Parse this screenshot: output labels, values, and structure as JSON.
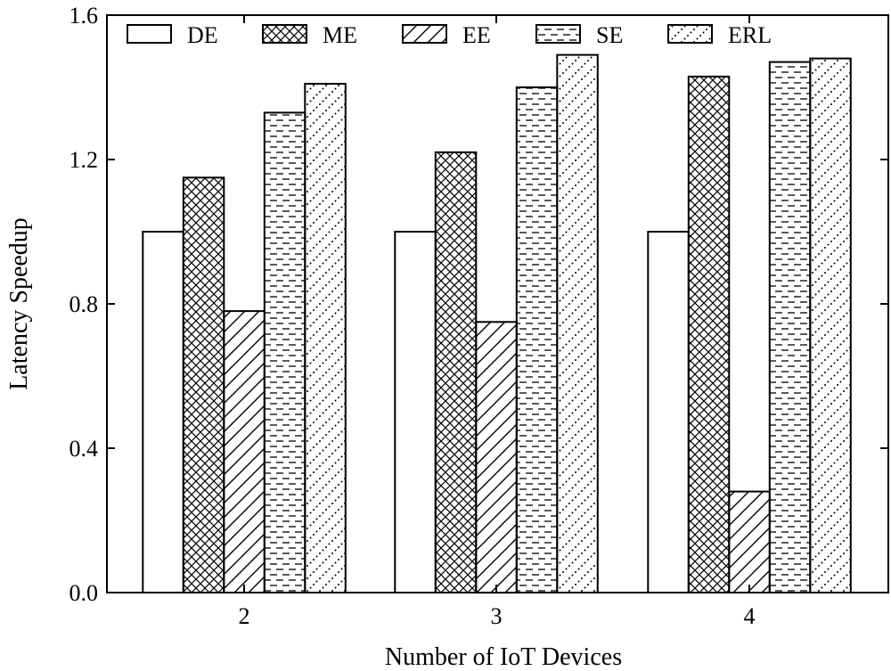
{
  "chart_data": {
    "type": "bar",
    "xlabel": "Number of IoT Devices",
    "ylabel": "Latency Speedup",
    "categories": [
      "2",
      "3",
      "4"
    ],
    "ylim": [
      0.0,
      1.6
    ],
    "yticks": [
      "0.0",
      "0.4",
      "0.8",
      "1.2",
      "1.6"
    ],
    "legend_position": "top",
    "grid": false,
    "series": [
      {
        "name": "DE",
        "pattern": "none",
        "values": [
          1.0,
          1.0,
          1.0
        ]
      },
      {
        "name": "ME",
        "pattern": "crosshatch",
        "values": [
          1.15,
          1.22,
          1.43
        ]
      },
      {
        "name": "EE",
        "pattern": "diagonal",
        "values": [
          0.78,
          0.75,
          0.28
        ]
      },
      {
        "name": "SE",
        "pattern": "dashes",
        "values": [
          1.33,
          1.4,
          1.47
        ]
      },
      {
        "name": "ERL",
        "pattern": "dots",
        "values": [
          1.41,
          1.49,
          1.48
        ]
      }
    ]
  }
}
